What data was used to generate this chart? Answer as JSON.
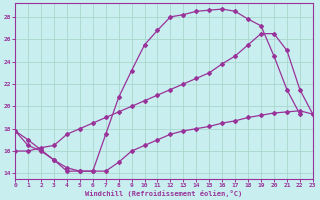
{
  "title": "",
  "xlabel": "Windchill (Refroidissement éolien,°C)",
  "background_color": "#c8eef0",
  "grid_color": "#a8d8cc",
  "line_color": "#993399",
  "xlim": [
    0,
    23
  ],
  "ylim": [
    13.5,
    29.2
  ],
  "xticks": [
    0,
    1,
    2,
    3,
    4,
    5,
    6,
    7,
    8,
    9,
    10,
    11,
    12,
    13,
    14,
    15,
    16,
    17,
    18,
    19,
    20,
    21,
    22,
    23
  ],
  "yticks": [
    14,
    16,
    18,
    20,
    22,
    24,
    26,
    28
  ],
  "series1_x": [
    0,
    1,
    2,
    3,
    4,
    5,
    6,
    7,
    8,
    9,
    10,
    11,
    12,
    13,
    14,
    15,
    16,
    17,
    18,
    19,
    20,
    21,
    22,
    23
  ],
  "series1_y": [
    17.8,
    17.0,
    16.1,
    15.2,
    14.2,
    14.2,
    14.2,
    17.5,
    20.8,
    23.2,
    25.5,
    26.8,
    28.0,
    28.2,
    28.5,
    28.6,
    28.7,
    28.5,
    27.8,
    27.2,
    24.5,
    21.5,
    19.3,
    null
  ],
  "series2_x": [
    0,
    1,
    2,
    3,
    4,
    5,
    6,
    7,
    8,
    9,
    10,
    11,
    12,
    13,
    14,
    15,
    16,
    17,
    18,
    19,
    20,
    21,
    22,
    23
  ],
  "series2_y": [
    16.0,
    16.0,
    16.3,
    16.5,
    17.5,
    18.0,
    18.5,
    19.0,
    19.5,
    20.0,
    20.5,
    21.0,
    21.5,
    22.0,
    22.5,
    23.0,
    23.8,
    24.5,
    25.5,
    26.5,
    26.5,
    25.0,
    21.5,
    19.3
  ],
  "series3_x": [
    0,
    1,
    2,
    3,
    4,
    5,
    6,
    7,
    8,
    9,
    10,
    11,
    12,
    13,
    14,
    15,
    16,
    17,
    18,
    19,
    20,
    21,
    22,
    23
  ],
  "series3_y": [
    17.8,
    16.5,
    16.0,
    15.2,
    14.5,
    14.2,
    14.2,
    14.2,
    15.0,
    16.0,
    16.5,
    17.0,
    17.5,
    17.8,
    18.0,
    18.2,
    18.5,
    18.7,
    19.0,
    19.2,
    19.4,
    19.5,
    19.6,
    19.3
  ]
}
